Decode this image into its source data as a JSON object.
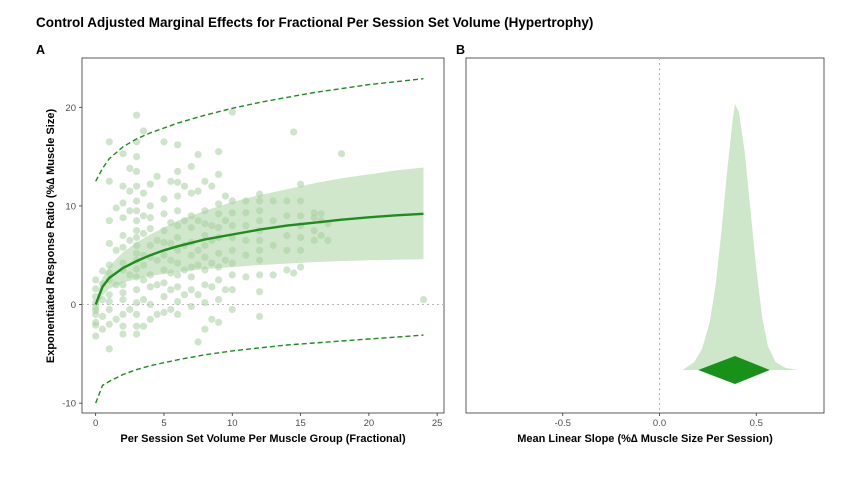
{
  "title": "Control Adjusted Marginal Effects for Fractional Per Session Set Volume (Hypertrophy)",
  "colors": {
    "line": "#1e8c1e",
    "band": "#c9e3c3",
    "points": "#a8cfa0",
    "diamond": "#179117"
  },
  "chart_data": [
    {
      "panel": "A",
      "type": "scatter",
      "xlabel": "Per Session Set Volume Per Muscle Group (Fractional)",
      "ylabel": "Exponentiated Response Ratio (%∆ Muscle Size)",
      "xlim": [
        -1,
        25.5
      ],
      "ylim": [
        -11,
        25
      ],
      "xticks": [
        0,
        5,
        10,
        15,
        20,
        25
      ],
      "yticks": [
        -10,
        0,
        10,
        20
      ],
      "grid": false,
      "reference_line_y": 0,
      "fit": {
        "x": [
          0,
          0.5,
          1,
          2,
          3,
          4,
          5,
          6,
          8,
          10,
          12,
          14,
          16,
          18,
          20,
          22,
          24
        ],
        "estimate": [
          0,
          1.8,
          2.7,
          3.7,
          4.4,
          5.0,
          5.5,
          5.9,
          6.6,
          7.1,
          7.6,
          8.0,
          8.3,
          8.6,
          8.85,
          9.05,
          9.2
        ],
        "ci_lower": [
          -0.5,
          0.9,
          1.6,
          2.2,
          2.6,
          2.9,
          3.1,
          3.3,
          3.6,
          3.8,
          4.0,
          4.15,
          4.3,
          4.4,
          4.5,
          4.55,
          4.6
        ],
        "ci_upper": [
          0.4,
          2.7,
          3.9,
          5.3,
          6.3,
          7.1,
          7.8,
          8.5,
          9.5,
          10.4,
          11.1,
          11.7,
          12.3,
          12.8,
          13.2,
          13.6,
          13.9
        ],
        "pi_lower": [
          -10,
          -8.2,
          -7.8,
          -7.1,
          -6.6,
          -6.2,
          -5.9,
          -5.6,
          -5.1,
          -4.7,
          -4.4,
          -4.1,
          -3.9,
          -3.7,
          -3.5,
          -3.3,
          -3.1
        ],
        "pi_upper": [
          12.5,
          13.8,
          14.8,
          16.0,
          16.8,
          17.4,
          17.9,
          18.4,
          19.2,
          19.9,
          20.5,
          21.0,
          21.5,
          21.9,
          22.3,
          22.6,
          22.9
        ]
      },
      "points": [
        [
          0,
          -3.2
        ],
        [
          0,
          -2.1
        ],
        [
          0,
          -1.0
        ],
        [
          0,
          -0.3
        ],
        [
          0,
          0.8
        ],
        [
          0,
          1.6
        ],
        [
          0,
          -1.8
        ],
        [
          0,
          0.2
        ],
        [
          0,
          2.5
        ],
        [
          0,
          -0.6
        ],
        [
          0.5,
          -1.2
        ],
        [
          0.5,
          0.5
        ],
        [
          0.5,
          2.1
        ],
        [
          0.5,
          3.4
        ],
        [
          0.5,
          -2.5
        ],
        [
          1,
          -4.5
        ],
        [
          1,
          -2.0
        ],
        [
          1,
          -0.5
        ],
        [
          1,
          1.0
        ],
        [
          1,
          2.5
        ],
        [
          1,
          4.0
        ],
        [
          1,
          6.2
        ],
        [
          1,
          8.5
        ],
        [
          1,
          12.5
        ],
        [
          1,
          16.5
        ],
        [
          1,
          0.3
        ],
        [
          1,
          3.2
        ],
        [
          1.5,
          -1.5
        ],
        [
          1.5,
          2.0
        ],
        [
          1.5,
          5.5
        ],
        [
          1.5,
          9.8
        ],
        [
          2,
          -3.0
        ],
        [
          2,
          -1.0
        ],
        [
          2,
          0.5
        ],
        [
          2,
          2.0
        ],
        [
          2,
          3.5
        ],
        [
          2,
          4.2
        ],
        [
          2,
          5.8
        ],
        [
          2,
          7.0
        ],
        [
          2,
          8.8
        ],
        [
          2,
          10.3
        ],
        [
          2,
          12.0
        ],
        [
          2,
          15.3
        ],
        [
          2,
          1.2
        ],
        [
          2,
          -2.2
        ],
        [
          2.5,
          -0.5
        ],
        [
          2.5,
          3.0
        ],
        [
          2.5,
          6.5
        ],
        [
          2.5,
          11.5
        ],
        [
          2.5,
          9.5
        ],
        [
          2.5,
          13.8
        ],
        [
          3,
          -3.0
        ],
        [
          3,
          -2.2
        ],
        [
          3,
          -1.0
        ],
        [
          3,
          0.2
        ],
        [
          3,
          1.5
        ],
        [
          3,
          2.8
        ],
        [
          3,
          3.6
        ],
        [
          3,
          4.5
        ],
        [
          3,
          5.2
        ],
        [
          3,
          6.0
        ],
        [
          3,
          6.8
        ],
        [
          3,
          7.5
        ],
        [
          3,
          8.5
        ],
        [
          3,
          9.5
        ],
        [
          3,
          10.5
        ],
        [
          3,
          12.0
        ],
        [
          3,
          13.5
        ],
        [
          3,
          15.0
        ],
        [
          3,
          16.5
        ],
        [
          3,
          19.2
        ],
        [
          3.5,
          -2.2
        ],
        [
          3.5,
          0.5
        ],
        [
          3.5,
          2.5
        ],
        [
          3.5,
          4.0
        ],
        [
          3.5,
          5.0
        ],
        [
          3.5,
          7.2
        ],
        [
          3.5,
          9.0
        ],
        [
          3.5,
          11.3
        ],
        [
          3.5,
          17.6
        ],
        [
          4,
          -1.5
        ],
        [
          4,
          0.0
        ],
        [
          4,
          1.8
        ],
        [
          4,
          3.0
        ],
        [
          4,
          4.8
        ],
        [
          4,
          6.0
        ],
        [
          4,
          7.7
        ],
        [
          4,
          8.8
        ],
        [
          4,
          10.0
        ],
        [
          4,
          12.2
        ],
        [
          4.5,
          -1.0
        ],
        [
          4.5,
          2.0
        ],
        [
          4.5,
          4.5
        ],
        [
          4.5,
          6.5
        ],
        [
          4.5,
          13.0
        ],
        [
          5,
          -0.8
        ],
        [
          5,
          0.8
        ],
        [
          5,
          2.2
        ],
        [
          5,
          3.5
        ],
        [
          5,
          5.0
        ],
        [
          5,
          6.3
        ],
        [
          5,
          7.5
        ],
        [
          5,
          9.2
        ],
        [
          5,
          10.7
        ],
        [
          5,
          16.5
        ],
        [
          5.5,
          -0.5
        ],
        [
          5.5,
          1.5
        ],
        [
          5.5,
          3.2
        ],
        [
          5.5,
          4.5
        ],
        [
          5.5,
          6.2
        ],
        [
          5.5,
          8.3
        ],
        [
          5.5,
          12.5
        ],
        [
          6,
          -1.0
        ],
        [
          6,
          0.3
        ],
        [
          6,
          1.8
        ],
        [
          6,
          3.0
        ],
        [
          6,
          4.2
        ],
        [
          6,
          5.5
        ],
        [
          6,
          6.8
        ],
        [
          6,
          8.0
        ],
        [
          6,
          9.5
        ],
        [
          6,
          11.0
        ],
        [
          6,
          12.4
        ],
        [
          6,
          13.5
        ],
        [
          6,
          16.2
        ],
        [
          6.5,
          1.0
        ],
        [
          6.5,
          3.5
        ],
        [
          6.5,
          6.0
        ],
        [
          6.5,
          8.5
        ],
        [
          6.5,
          12.0
        ],
        [
          7,
          -0.2
        ],
        [
          7,
          1.5
        ],
        [
          7,
          2.8
        ],
        [
          7,
          3.8
        ],
        [
          7,
          5.0
        ],
        [
          7,
          6.3
        ],
        [
          7,
          7.8
        ],
        [
          7,
          9.0
        ],
        [
          7,
          11.3
        ],
        [
          7,
          14.0
        ],
        [
          7.5,
          -3.8
        ],
        [
          7.5,
          1.0
        ],
        [
          7.5,
          4.0
        ],
        [
          7.5,
          5.5
        ],
        [
          7.5,
          8.5
        ],
        [
          7.5,
          11.5
        ],
        [
          7.5,
          15.2
        ],
        [
          8,
          -2.5
        ],
        [
          8,
          0.2
        ],
        [
          8,
          2.0
        ],
        [
          8,
          3.5
        ],
        [
          8,
          4.8
        ],
        [
          8,
          6.0
        ],
        [
          8,
          7.0
        ],
        [
          8,
          8.2
        ],
        [
          8,
          9.5
        ],
        [
          8,
          12.5
        ],
        [
          8.5,
          -1.5
        ],
        [
          8.5,
          1.8
        ],
        [
          8.5,
          4.2
        ],
        [
          8.5,
          6.5
        ],
        [
          8.5,
          8.0
        ],
        [
          8.5,
          12.0
        ],
        [
          9,
          -1.8
        ],
        [
          9,
          0.5
        ],
        [
          9,
          2.5
        ],
        [
          9,
          3.8
        ],
        [
          9,
          5.2
        ],
        [
          9,
          6.8
        ],
        [
          9,
          7.8
        ],
        [
          9,
          9.2
        ],
        [
          9,
          10.2
        ],
        [
          9,
          13.2
        ],
        [
          9,
          15.5
        ],
        [
          9.5,
          1.5
        ],
        [
          9.5,
          4.5
        ],
        [
          9.5,
          8.5
        ],
        [
          9.5,
          11.0
        ],
        [
          10,
          -0.5
        ],
        [
          10,
          1.5
        ],
        [
          10,
          3.0
        ],
        [
          10,
          4.2
        ],
        [
          10,
          5.5
        ],
        [
          10,
          6.8
        ],
        [
          10,
          8.0
        ],
        [
          10,
          9.3
        ],
        [
          10,
          10.5
        ],
        [
          10,
          19.5
        ],
        [
          11,
          2.8
        ],
        [
          11,
          5.0
        ],
        [
          11,
          6.5
        ],
        [
          11,
          8.0
        ],
        [
          11,
          9.3
        ],
        [
          11,
          10.5
        ],
        [
          12,
          -1.2
        ],
        [
          12,
          1.3
        ],
        [
          12,
          3.0
        ],
        [
          12,
          4.5
        ],
        [
          12,
          5.5
        ],
        [
          12,
          6.5
        ],
        [
          12,
          7.5
        ],
        [
          12,
          8.5
        ],
        [
          12,
          9.5
        ],
        [
          12,
          10.5
        ],
        [
          12,
          11.2
        ],
        [
          13,
          3.0
        ],
        [
          13,
          6.0
        ],
        [
          13,
          8.5
        ],
        [
          13,
          10.5
        ],
        [
          14,
          3.5
        ],
        [
          14,
          5.5
        ],
        [
          14,
          7.0
        ],
        [
          14,
          9.0
        ],
        [
          14,
          10.5
        ],
        [
          14.5,
          3.2
        ],
        [
          14.5,
          17.5
        ],
        [
          15,
          3.8
        ],
        [
          15,
          5.5
        ],
        [
          15,
          6.8
        ],
        [
          15,
          8.0
        ],
        [
          15,
          9.0
        ],
        [
          15,
          10.5
        ],
        [
          15,
          12.2
        ],
        [
          16,
          7.5
        ],
        [
          16,
          8.8
        ],
        [
          16,
          9.3
        ],
        [
          16,
          6.5
        ],
        [
          16.5,
          7.0
        ],
        [
          16.5,
          8.5
        ],
        [
          16.5,
          9.2
        ],
        [
          17,
          6.5
        ],
        [
          17,
          8.2
        ],
        [
          18,
          15.3
        ],
        [
          24,
          0.5
        ]
      ]
    },
    {
      "panel": "B",
      "type": "area",
      "xlabel": "Mean Linear Slope (%∆ Muscle Size Per Session)",
      "ylabel": "",
      "xlim": [
        -1.0,
        0.85
      ],
      "xticks": [
        -0.5,
        0.0,
        0.5
      ],
      "grid": false,
      "reference_line_x": 0,
      "posterior": {
        "x": [
          0.12,
          0.18,
          0.22,
          0.26,
          0.29,
          0.32,
          0.35,
          0.38,
          0.39,
          0.41,
          0.44,
          0.47,
          0.5,
          0.53,
          0.56,
          0.6,
          0.65,
          0.72
        ],
        "density": [
          0,
          0.03,
          0.08,
          0.18,
          0.32,
          0.52,
          0.75,
          0.95,
          1.0,
          0.97,
          0.82,
          0.6,
          0.38,
          0.2,
          0.09,
          0.03,
          0.008,
          0
        ]
      },
      "interval": {
        "lower": 0.2,
        "median": 0.39,
        "upper": 0.57
      }
    }
  ]
}
